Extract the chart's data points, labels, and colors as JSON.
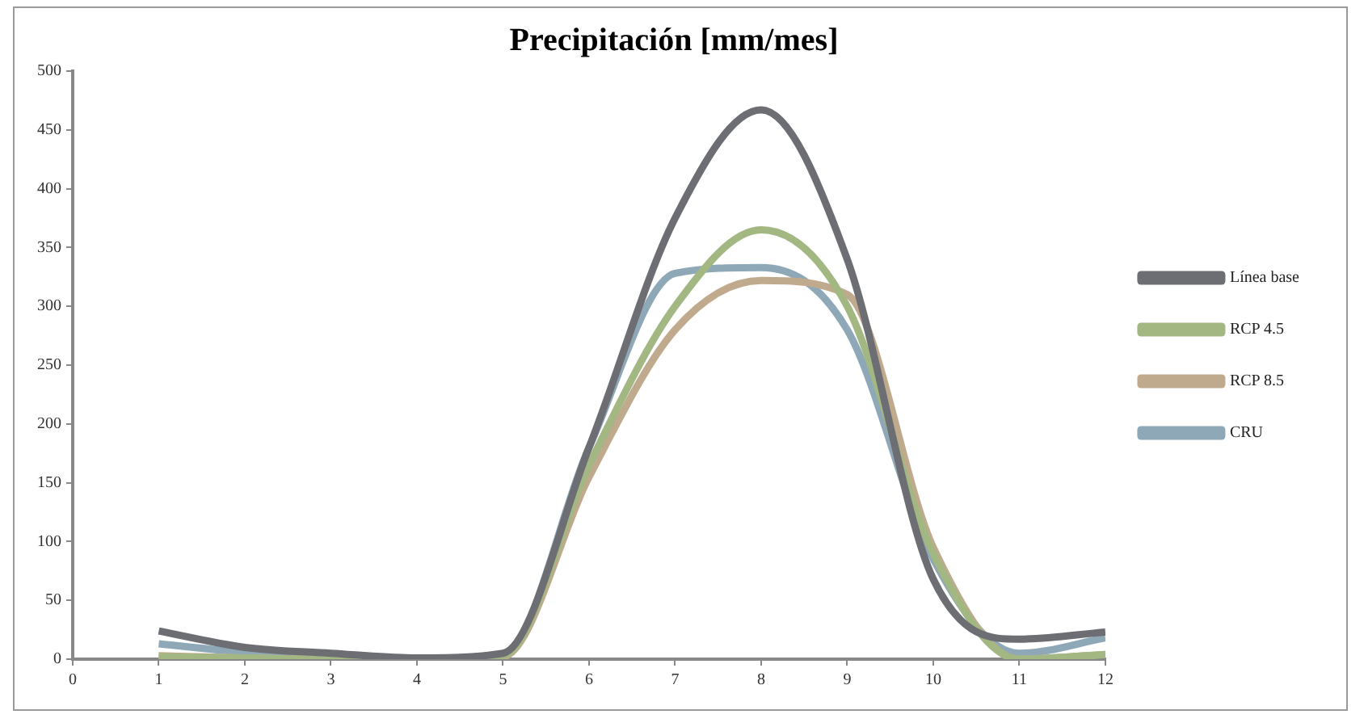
{
  "chart_data": {
    "type": "line",
    "title": "Precipitación [mm/mes]",
    "x": [
      1,
      2,
      3,
      4,
      5,
      6,
      7,
      8,
      9,
      10,
      11,
      12
    ],
    "series": [
      {
        "name": "Línea base",
        "color": "#6d6e73",
        "values": [
          24,
          10,
          5,
          1,
          5,
          180,
          375,
          467,
          340,
          68,
          17,
          23
        ]
      },
      {
        "name": "RCP 4.5",
        "color": "#a3b783",
        "values": [
          2,
          1,
          0,
          0,
          3,
          165,
          300,
          365,
          300,
          90,
          0,
          4
        ]
      },
      {
        "name": "RCP 8.5",
        "color": "#c0aa8e",
        "values": [
          3,
          1,
          0,
          0,
          2,
          155,
          280,
          322,
          310,
          95,
          0,
          4
        ]
      },
      {
        "name": "CRU",
        "color": "#8fa8b8",
        "values": [
          13,
          6,
          3,
          1,
          3,
          180,
          328,
          333,
          280,
          85,
          5,
          18
        ]
      }
    ],
    "xlim": [
      0,
      12
    ],
    "xticks": [
      0,
      1,
      2,
      3,
      4,
      5,
      6,
      7,
      8,
      9,
      10,
      11,
      12
    ],
    "ylim": [
      0,
      500
    ],
    "yticks": [
      0,
      50,
      100,
      150,
      200,
      250,
      300,
      350,
      400,
      450,
      500
    ],
    "grid": false,
    "legend": "right",
    "marker": "none",
    "line_style": "solid"
  }
}
